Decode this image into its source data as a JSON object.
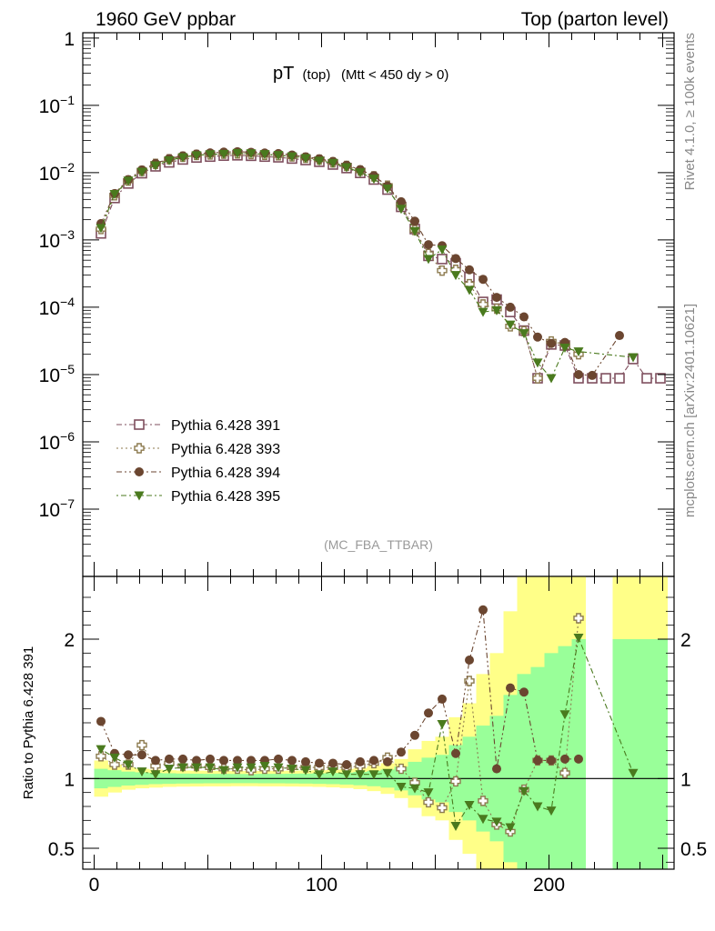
{
  "header": {
    "left": "1960 GeV ppbar",
    "right": "Top (parton level)"
  },
  "side_labels": {
    "top": "Rivet 4.1.0, ≥ 100k events",
    "bottom": "mcplots.cern.ch [arXiv:2401.10621]"
  },
  "colors": {
    "py391": "#7f4f5e",
    "py393": "#8c7a4e",
    "py394": "#6b4630",
    "py395": "#4a7a1e",
    "band_green": "#99ff99",
    "band_yellow": "#ffff88"
  },
  "chart_data": [
    {
      "type": "line",
      "panel": "main",
      "title": "pT",
      "title_sub": "(top)",
      "title_cond": "(Mtt < 450 dy > 0)",
      "watermark": "(MC_FBA_TTBAR)",
      "xlim": [
        -5,
        255
      ],
      "ylim": [
        1e-08,
        1.2
      ],
      "yscale": "log",
      "ytick_values": [
        1,
        0.1,
        0.01,
        0.001,
        0.0001,
        1e-05,
        1e-06,
        1e-07
      ],
      "ytick_labels": [
        {
          "base": "1",
          "exp": ""
        },
        {
          "base": "10",
          "exp": "−1"
        },
        {
          "base": "10",
          "exp": "−2"
        },
        {
          "base": "10",
          "exp": "−3"
        },
        {
          "base": "10",
          "exp": "−4"
        },
        {
          "base": "10",
          "exp": "−5"
        },
        {
          "base": "10",
          "exp": "−6"
        },
        {
          "base": "10",
          "exp": "−7"
        }
      ],
      "series": [
        {
          "name": "Pythia 6.428 391",
          "marker": "open-square",
          "color_key": "py391",
          "x": [
            3,
            9,
            15,
            21,
            27,
            33,
            39,
            45,
            51,
            57,
            63,
            69,
            75,
            81,
            87,
            93,
            99,
            105,
            111,
            117,
            123,
            129,
            135,
            141,
            147,
            153,
            159,
            165,
            171,
            177,
            183,
            189,
            195,
            201,
            207,
            213,
            219,
            225,
            231,
            237,
            243,
            249
          ],
          "values": [
            0.00125,
            0.0042,
            0.0069,
            0.0098,
            0.0124,
            0.0142,
            0.0157,
            0.0168,
            0.0173,
            0.0179,
            0.0181,
            0.0178,
            0.0173,
            0.0169,
            0.0162,
            0.0154,
            0.0145,
            0.0132,
            0.0117,
            0.0099,
            0.0079,
            0.0056,
            0.0031,
            0.00145,
            0.00058,
            0.00052,
            0.00045,
            0.00028,
            0.00012,
            0.00013,
            8.5e-05,
            4.5e-05,
            8.8e-06,
            2.8e-05,
            2.7e-05,
            8.8e-06,
            8.8e-06,
            8.8e-06,
            8.8e-06,
            1.7e-05,
            8.8e-06,
            8.8e-06
          ]
        },
        {
          "name": "Pythia 6.428 393",
          "marker": "open-cross",
          "color_key": "py393",
          "x": [
            3,
            9,
            15,
            21,
            27,
            33,
            39,
            45,
            51,
            57,
            63,
            69,
            75,
            81,
            87,
            93,
            99,
            105,
            111,
            117,
            123,
            129,
            135,
            141,
            147,
            153,
            159,
            165,
            171,
            177,
            183,
            189,
            195,
            201,
            207,
            213,
            219,
            225,
            231,
            237,
            243,
            249
          ],
          "values": [
            0.00145,
            0.0046,
            0.0076,
            0.0106,
            0.0135,
            0.0158,
            0.0172,
            0.0183,
            0.0186,
            0.0191,
            0.0193,
            0.0189,
            0.0184,
            0.0181,
            0.0174,
            0.0166,
            0.0156,
            0.0142,
            0.0126,
            0.0107,
            0.0088,
            0.0064,
            0.0033,
            0.0014,
            0.00062,
            0.00035,
            0.00036,
            0.00022,
            0.00011,
            9.5e-05,
            5.2e-05,
            4.4e-05,
            8.8e-06,
            3.1e-05,
            2.8e-05,
            2e-05,
            null,
            null,
            null,
            null,
            null,
            null
          ]
        },
        {
          "name": "Pythia 6.428 394",
          "marker": "filled-circle",
          "color_key": "py394",
          "x": [
            3,
            9,
            15,
            21,
            27,
            33,
            39,
            45,
            51,
            57,
            63,
            69,
            75,
            81,
            87,
            93,
            99,
            105,
            111,
            117,
            123,
            129,
            135,
            141,
            147,
            153,
            159,
            165,
            171,
            177,
            183,
            189,
            195,
            201,
            207,
            213,
            219,
            225,
            231,
            237,
            243,
            249
          ],
          "values": [
            0.00175,
            0.0049,
            0.0079,
            0.011,
            0.0137,
            0.0162,
            0.0178,
            0.0189,
            0.0197,
            0.0202,
            0.0205,
            0.0201,
            0.0196,
            0.0192,
            0.0183,
            0.0172,
            0.0161,
            0.0147,
            0.0129,
            0.0111,
            0.009,
            0.0063,
            0.0037,
            0.0019,
            0.00085,
            0.00082,
            0.00053,
            0.00036,
            0.00026,
            0.00014,
            0.0001,
            7.2e-05,
            3.6e-05,
            2.9e-05,
            3e-05,
            1e-05,
            9.7e-06,
            null,
            3.8e-05,
            null,
            null,
            null
          ]
        },
        {
          "name": "Pythia 6.428 395",
          "marker": "filled-triangle-down",
          "color_key": "py395",
          "x": [
            3,
            9,
            15,
            21,
            27,
            33,
            39,
            45,
            51,
            57,
            63,
            69,
            75,
            81,
            87,
            93,
            99,
            105,
            111,
            117,
            123,
            129,
            135,
            141,
            147,
            153,
            159,
            165,
            171,
            177,
            183,
            189,
            195,
            201,
            207,
            213,
            219,
            225,
            231,
            237,
            243,
            249
          ],
          "values": [
            0.0015,
            0.0048,
            0.0076,
            0.0103,
            0.0128,
            0.0152,
            0.0169,
            0.0181,
            0.0187,
            0.0189,
            0.0195,
            0.0193,
            0.0188,
            0.0182,
            0.0174,
            0.0164,
            0.015,
            0.0139,
            0.012,
            0.0101,
            0.0081,
            0.0058,
            0.0029,
            0.00135,
            0.00052,
            0.00072,
            0.0003,
            0.00018,
            8.5e-05,
            9e-05,
            5.5e-05,
            4.1e-05,
            1.5e-05,
            8.8e-06,
            2.5e-05,
            2.2e-05,
            null,
            null,
            null,
            1.8e-05,
            null,
            null
          ]
        }
      ]
    },
    {
      "type": "line",
      "panel": "ratio",
      "ylabel": "Ratio to Pythia 6.428 391",
      "xlim": [
        -5,
        255
      ],
      "ylim": [
        0.35,
        2.45
      ],
      "xtick_labels": [
        "0",
        "100",
        "200"
      ],
      "xtick_values": [
        0,
        100,
        200
      ],
      "ytick_labels": [
        "0.5",
        "1",
        "2"
      ],
      "ytick_values": [
        0.5,
        1,
        2
      ],
      "bands": {
        "edges": [
          0,
          6,
          12,
          18,
          24,
          30,
          36,
          42,
          48,
          54,
          60,
          66,
          72,
          78,
          84,
          90,
          96,
          102,
          108,
          114,
          120,
          126,
          132,
          138,
          144,
          150,
          156,
          162,
          168,
          174,
          180,
          186,
          192,
          198,
          204,
          210,
          216,
          222,
          228,
          234,
          240,
          246,
          252
        ],
        "green_lo": [
          0.93,
          0.94,
          0.95,
          0.955,
          0.96,
          0.962,
          0.964,
          0.965,
          0.966,
          0.966,
          0.967,
          0.967,
          0.966,
          0.966,
          0.965,
          0.964,
          0.962,
          0.96,
          0.957,
          0.952,
          0.945,
          0.935,
          0.915,
          0.88,
          0.85,
          0.83,
          0.76,
          0.7,
          0.62,
          0.55,
          0.4,
          0.35,
          0.35,
          0.35,
          0.35,
          0.35,
          null,
          null,
          0.35,
          0.35,
          0.35,
          0.35
        ],
        "green_hi": [
          1.07,
          1.06,
          1.05,
          1.045,
          1.04,
          1.038,
          1.036,
          1.035,
          1.034,
          1.034,
          1.033,
          1.033,
          1.034,
          1.034,
          1.035,
          1.036,
          1.038,
          1.04,
          1.043,
          1.048,
          1.055,
          1.065,
          1.085,
          1.12,
          1.15,
          1.17,
          1.24,
          1.3,
          1.38,
          1.45,
          1.6,
          1.75,
          1.8,
          1.9,
          1.95,
          2.0,
          null,
          null,
          2.0,
          2.0,
          2.0,
          2.0
        ],
        "yellow_lo": [
          0.87,
          0.9,
          0.92,
          0.93,
          0.935,
          0.94,
          0.942,
          0.943,
          0.944,
          0.944,
          0.945,
          0.945,
          0.944,
          0.944,
          0.943,
          0.942,
          0.94,
          0.937,
          0.932,
          0.924,
          0.91,
          0.89,
          0.86,
          0.79,
          0.73,
          0.7,
          0.56,
          0.46,
          0.35,
          0.35,
          0.35,
          0.35,
          0.35,
          0.35,
          0.35,
          0.35,
          null,
          null,
          0.35,
          0.35,
          0.35,
          0.35
        ],
        "yellow_hi": [
          1.13,
          1.1,
          1.08,
          1.07,
          1.065,
          1.06,
          1.058,
          1.057,
          1.056,
          1.056,
          1.055,
          1.055,
          1.056,
          1.056,
          1.057,
          1.058,
          1.06,
          1.063,
          1.068,
          1.076,
          1.09,
          1.11,
          1.14,
          1.21,
          1.27,
          1.3,
          1.44,
          1.54,
          1.75,
          1.9,
          2.2,
          2.45,
          2.45,
          2.45,
          2.45,
          2.45,
          null,
          null,
          2.45,
          2.45,
          2.45,
          2.45
        ]
      },
      "series": [
        {
          "name": "Pythia 6.428 393",
          "color_key": "py393",
          "marker": "open-cross",
          "x": [
            3,
            9,
            15,
            21,
            27,
            33,
            39,
            45,
            51,
            57,
            63,
            69,
            75,
            81,
            87,
            93,
            99,
            105,
            111,
            117,
            123,
            129,
            135,
            141,
            147,
            153,
            159,
            165,
            171,
            177,
            183,
            189,
            195,
            201,
            207,
            213
          ],
          "values": [
            1.16,
            1.1,
            1.1,
            1.24,
            1.09,
            1.11,
            1.09,
            1.09,
            1.08,
            1.07,
            1.07,
            1.06,
            1.07,
            1.07,
            1.08,
            1.08,
            1.08,
            1.08,
            1.08,
            1.09,
            1.11,
            1.15,
            1.07,
            0.97,
            0.83,
            0.79,
            0.98,
            1.7,
            0.84,
            0.67,
            0.62,
            0.92,
            1.13,
            1.13,
            1.04,
            2.15
          ]
        },
        {
          "name": "Pythia 6.428 394",
          "color_key": "py394",
          "marker": "filled-circle",
          "x": [
            3,
            9,
            15,
            21,
            27,
            33,
            39,
            45,
            51,
            57,
            63,
            69,
            75,
            81,
            87,
            93,
            99,
            105,
            111,
            117,
            123,
            129,
            135,
            141,
            147,
            153,
            159,
            165,
            171,
            177,
            183,
            189,
            195,
            201,
            207,
            213
          ],
          "values": [
            1.41,
            1.18,
            1.17,
            1.17,
            1.13,
            1.14,
            1.14,
            1.13,
            1.14,
            1.13,
            1.13,
            1.13,
            1.13,
            1.14,
            1.13,
            1.12,
            1.11,
            1.11,
            1.1,
            1.12,
            1.13,
            1.12,
            1.19,
            1.31,
            1.47,
            1.57,
            1.18,
            1.85,
            2.21,
            1.07,
            1.65,
            1.62,
            1.13,
            1.13,
            1.14,
            1.14
          ]
        },
        {
          "name": "Pythia 6.428 395",
          "color_key": "py395",
          "marker": "filled-triangle-down",
          "x": [
            3,
            9,
            15,
            21,
            27,
            33,
            39,
            45,
            51,
            57,
            63,
            69,
            75,
            81,
            87,
            93,
            99,
            105,
            111,
            117,
            123,
            129,
            135,
            141,
            147,
            153,
            159,
            165,
            171,
            177,
            183,
            189,
            195,
            201,
            207,
            213,
            237
          ],
          "values": [
            1.21,
            1.15,
            1.1,
            1.05,
            1.03,
            1.07,
            1.08,
            1.08,
            1.08,
            1.06,
            1.08,
            1.08,
            1.09,
            1.08,
            1.07,
            1.06,
            1.03,
            1.05,
            1.03,
            1.03,
            1.03,
            1.04,
            0.94,
            0.93,
            0.9,
            1.39,
            0.66,
            0.81,
            0.71,
            0.69,
            0.65,
            0.91,
            0.8,
            0.77,
            1.46,
            2.01,
            1.04
          ]
        }
      ]
    }
  ]
}
